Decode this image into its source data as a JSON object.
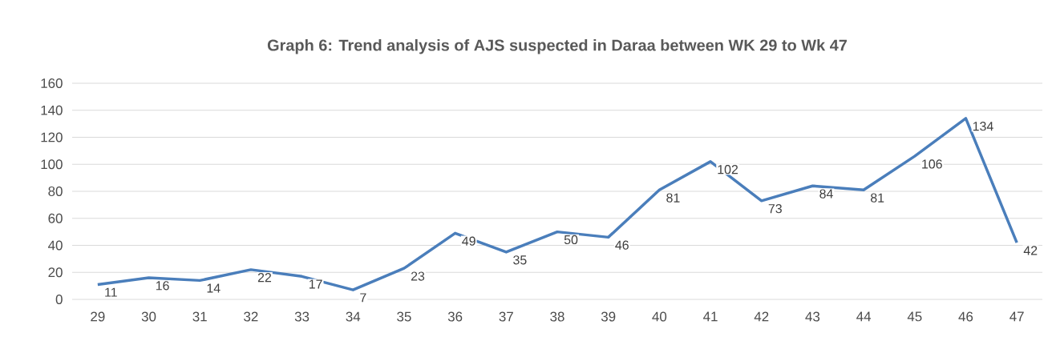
{
  "chart_data": {
    "type": "line",
    "title": "Graph 6: Trend analysis of AJS suspected in Daraa  between WK 29 to Wk 47",
    "categories": [
      "29",
      "30",
      "31",
      "32",
      "33",
      "34",
      "35",
      "36",
      "37",
      "38",
      "39",
      "40",
      "41",
      "42",
      "43",
      "44",
      "45",
      "46",
      "47"
    ],
    "series": [
      {
        "color": "#4a7ebb",
        "values": [
          11,
          16,
          14,
          22,
          17,
          7,
          23,
          49,
          35,
          50,
          46,
          81,
          102,
          73,
          84,
          81,
          106,
          134,
          42
        ]
      }
    ],
    "ylim": [
      0,
      160
    ],
    "yticks": [
      0,
      20,
      40,
      60,
      80,
      100,
      120,
      140,
      160
    ],
    "grid": "y",
    "data_labels": true,
    "marker": "none",
    "line_style": "solid"
  }
}
